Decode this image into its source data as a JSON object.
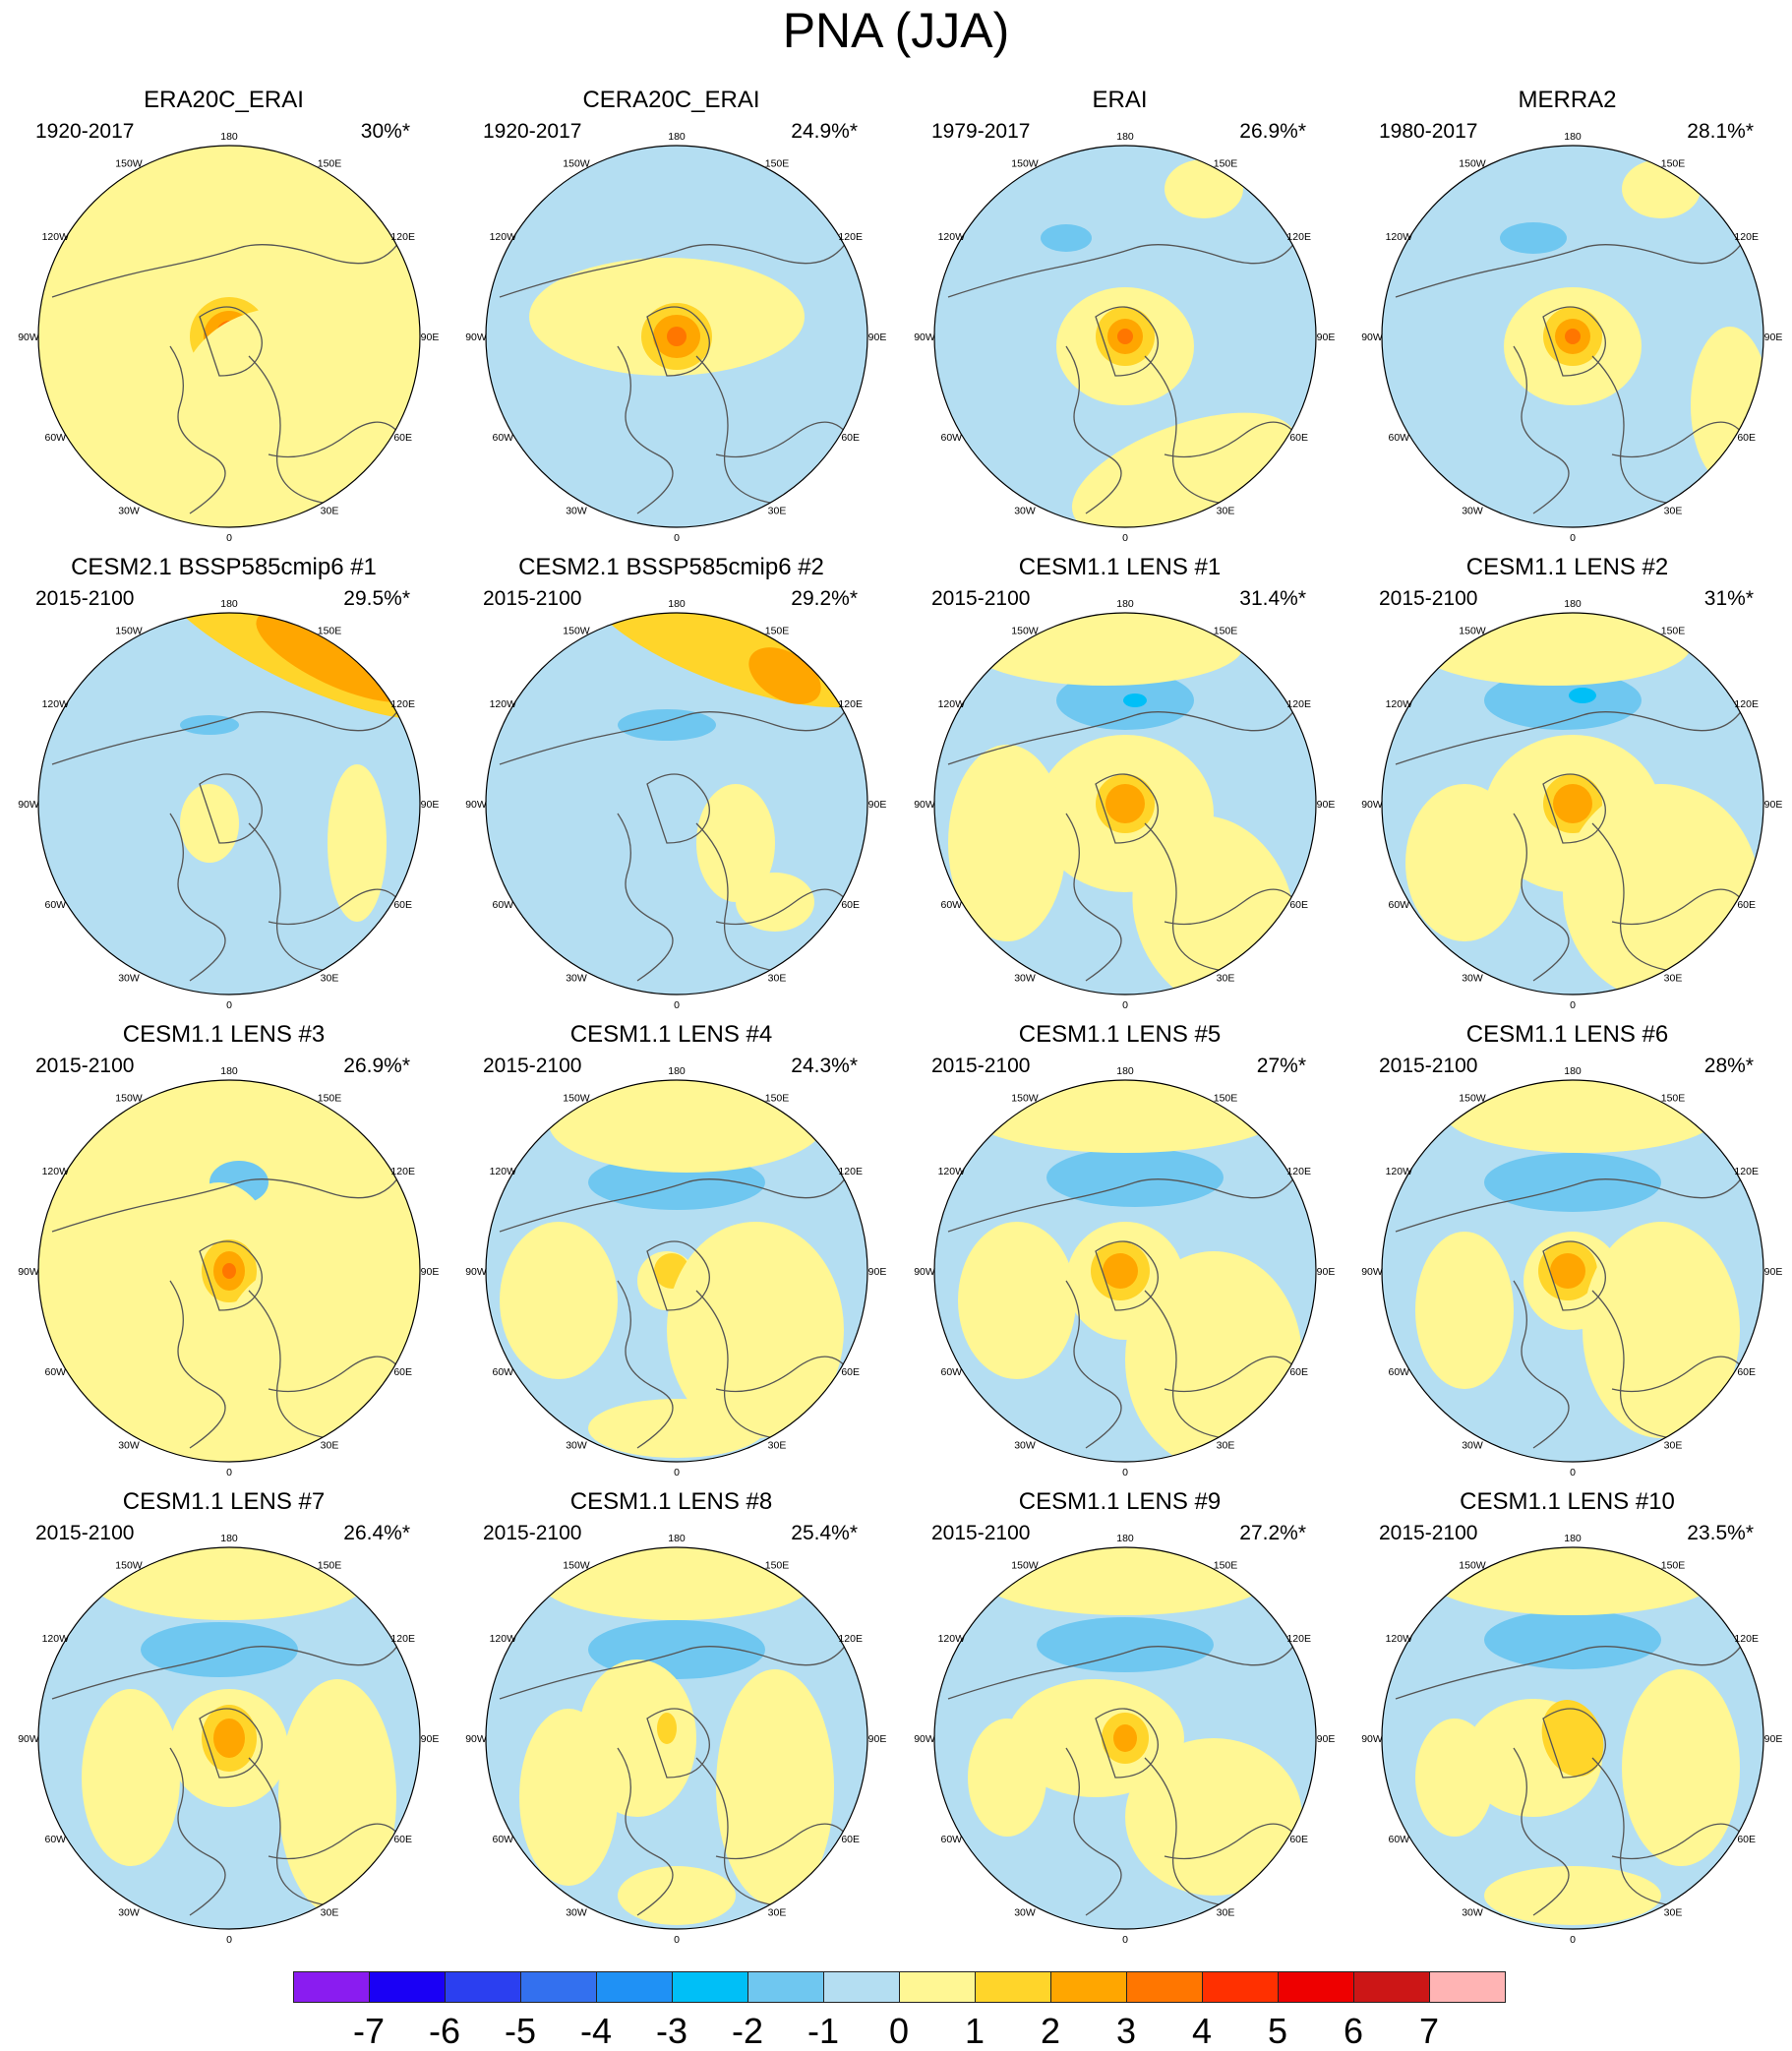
{
  "title": "PNA (JJA)",
  "chart_data": {
    "type": "heatmap",
    "description_units": "polar stereographic PNA pattern maps",
    "longitude_labels": [
      "180",
      "150E",
      "120E",
      "90E",
      "60E",
      "30E",
      "0",
      "30W",
      "60W",
      "90W",
      "120W",
      "150W"
    ],
    "panels": [
      {
        "title": "ERA20C_ERAI",
        "period": "1920-2017",
        "percent": "30%*"
      },
      {
        "title": "CERA20C_ERAI",
        "period": "1920-2017",
        "percent": "24.9%*"
      },
      {
        "title": "ERAI",
        "period": "1979-2017",
        "percent": "26.9%*"
      },
      {
        "title": "MERRA2",
        "period": "1980-2017",
        "percent": "28.1%*"
      },
      {
        "title": "CESM2.1 BSSP585cmip6 #1",
        "period": "2015-2100",
        "percent": "29.5%*"
      },
      {
        "title": "CESM2.1 BSSP585cmip6 #2",
        "period": "2015-2100",
        "percent": "29.2%*"
      },
      {
        "title": "CESM1.1 LENS #1",
        "period": "2015-2100",
        "percent": "31.4%*"
      },
      {
        "title": "CESM1.1 LENS #2",
        "period": "2015-2100",
        "percent": "31%*"
      },
      {
        "title": "CESM1.1 LENS #3",
        "period": "2015-2100",
        "percent": "26.9%*"
      },
      {
        "title": "CESM1.1 LENS #4",
        "period": "2015-2100",
        "percent": "24.3%*"
      },
      {
        "title": "CESM1.1 LENS #5",
        "period": "2015-2100",
        "percent": "27%*"
      },
      {
        "title": "CESM1.1 LENS #6",
        "period": "2015-2100",
        "percent": "28%*"
      },
      {
        "title": "CESM1.1 LENS #7",
        "period": "2015-2100",
        "percent": "26.4%*"
      },
      {
        "title": "CESM1.1 LENS #8",
        "period": "2015-2100",
        "percent": "25.4%*"
      },
      {
        "title": "CESM1.1 LENS #9",
        "period": "2015-2100",
        "percent": "27.2%*"
      },
      {
        "title": "CESM1.1 LENS #10",
        "period": "2015-2100",
        "percent": "23.5%*"
      }
    ],
    "colorbar": {
      "labels": [
        "-7",
        "-6",
        "-5",
        "-4",
        "-3",
        "-2",
        "-1",
        "0",
        "1",
        "2",
        "3",
        "4",
        "5",
        "6",
        "7"
      ],
      "colors": [
        "#8a1cf0",
        "#1a00f5",
        "#2b3ff0",
        "#3370ef",
        "#1f91f5",
        "#00bff7",
        "#6fc7f0",
        "#b4def2",
        "#fff794",
        "#ffd52a",
        "#ffa600",
        "#ff7600",
        "#ff3000",
        "#ee0000",
        "#cc1616",
        "#ffb4b4"
      ]
    }
  }
}
